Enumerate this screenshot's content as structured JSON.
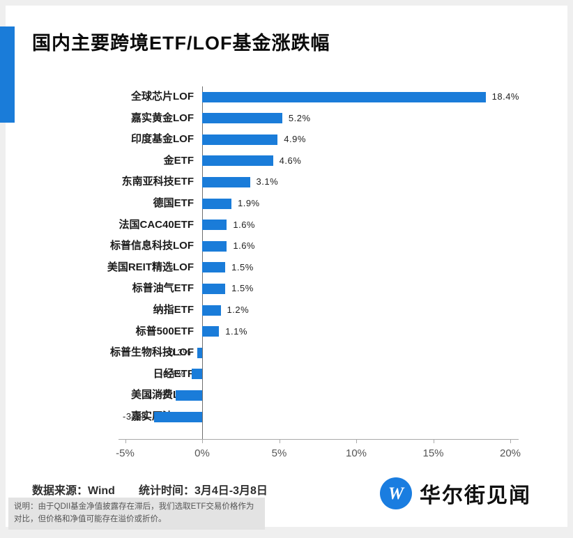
{
  "page": {
    "title": "国内主要跨境ETF/LOF基金涨跌幅"
  },
  "colors": {
    "bar_blue": "#1a7cd9",
    "accent_blue": "#1a7cd9",
    "logo_blue": "#1a7de0",
    "background": "#efefef",
    "card": "#ffffff"
  },
  "chart_data": {
    "type": "bar",
    "orientation": "horizontal",
    "title": "国内主要跨境ETF/LOF基金涨跌幅",
    "categories": [
      "全球芯片LOF",
      "嘉实黄金LOF",
      "印度基金LOF",
      "金ETF",
      "东南亚科技ETF",
      "德国ETF",
      "法国CAC40ETF",
      "标普信息科技LOF",
      "美国REIT精选LOF",
      "标普油气ETF",
      "纳指ETF",
      "标普500ETF",
      "标普生物科技LOF",
      "日经ETF",
      "美国消费LOF",
      "嘉实原油LOF"
    ],
    "values": [
      18.4,
      5.2,
      4.9,
      4.6,
      3.1,
      1.9,
      1.6,
      1.6,
      1.5,
      1.5,
      1.2,
      1.1,
      -0.3,
      -0.7,
      -1.7,
      -3.1
    ],
    "value_labels": [
      "18.4%",
      "5.2%",
      "4.9%",
      "4.6%",
      "3.1%",
      "1.9%",
      "1.6%",
      "1.6%",
      "1.5%",
      "1.5%",
      "1.2%",
      "1.1%",
      "-0.3%",
      "-0.7%",
      "-1.7%",
      "-3.1%"
    ],
    "xlim": [
      -5,
      20
    ],
    "x_ticks": [
      "-5%",
      "0%",
      "5%",
      "10%",
      "15%",
      "20%"
    ],
    "x_tick_values": [
      -5,
      0,
      5,
      10,
      15,
      20
    ],
    "bar_color": "#1a7cd9",
    "grid": false,
    "legend": "none"
  },
  "footer": {
    "source_label": "数据来源：Wind",
    "time_label": "统计时间：3月4日-3月8日",
    "note": "说明：由于QDII基金净值披露存在滞后，我们选取ETF交易价格作为对比，但价格和净值可能存在溢价或折价。",
    "logo_text": "华尔街见闻",
    "logo_letter": "W"
  }
}
